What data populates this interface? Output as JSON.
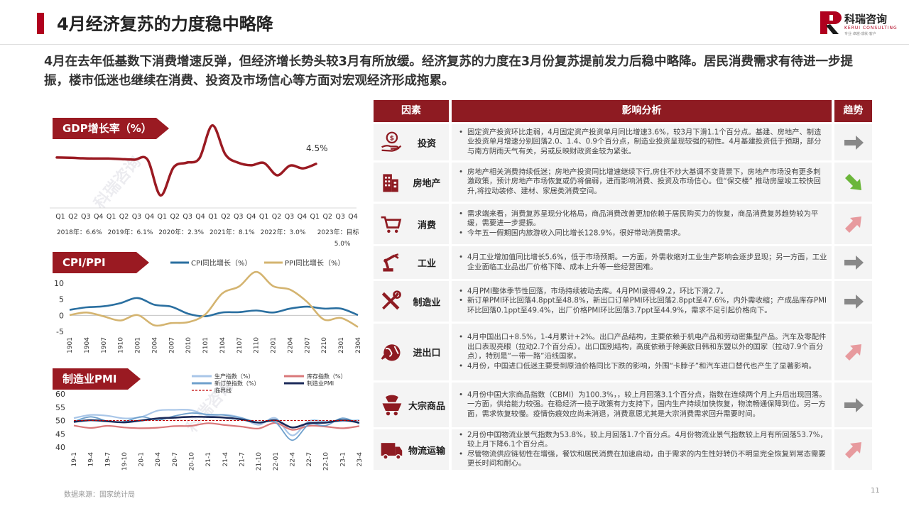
{
  "header": {
    "title": "4月经济复苏的力度稳中略降",
    "logo_cn": "科瑞咨询",
    "logo_en": "KERUI CONSULTING",
    "logo_sub": "专业·卓越·成就·客户"
  },
  "summary": "4月在去年低基数下消费增速反弹，但经济增长势头较3月有所放缓。经济复苏的力度在3月份复苏提前发力后稳中略降。居民消费需求有待进一步提振，楼市低迷也继续在消费、投资及市场信心等方面对宏观经济形成拖累。",
  "watermark": "科瑞咨询",
  "gdp": {
    "tag": "GDP增长率（%）",
    "annotation": "4.5%",
    "quarters": [
      "Q1",
      "Q2",
      "Q3",
      "Q4",
      "Q1",
      "Q2",
      "Q3",
      "Q4",
      "Q1",
      "Q2",
      "Q3",
      "Q4",
      "Q1",
      "Q2",
      "Q3",
      "Q4",
      "Q1",
      "Q2",
      "Q3",
      "Q4",
      "Q1",
      "Q2",
      "Q3",
      "Q4"
    ],
    "year_labels": [
      "2018年：6.6%",
      "2019年：6.1%",
      "2020年：2.3%",
      "2021年：8.1%",
      "2022年：3.0%",
      "2023年：目标5.0%"
    ]
  },
  "cpi": {
    "tag": "CPI/PPI",
    "legend_cpi": "CPI同比增长（%）",
    "legend_ppi": "PPI同比增长（%）",
    "y_ticks": [
      "10",
      "5",
      "0",
      "-5"
    ],
    "x_ticks": [
      "1901",
      "1904",
      "1907",
      "1910",
      "2001",
      "2004",
      "2007",
      "2010",
      "2101",
      "2104",
      "2107",
      "2110",
      "2201",
      "2204",
      "2207",
      "2210",
      "2301",
      "2304"
    ]
  },
  "pmi": {
    "tag": "制造业PMI",
    "legend": [
      "生产指数（%）",
      "库存指数（%）",
      "新订单指数（%）",
      "制造业PMI",
      "临界线"
    ],
    "y_ticks": [
      "60",
      "55",
      "50",
      "45",
      "40"
    ],
    "x_ticks": [
      "19-1",
      "19-4",
      "19-7",
      "19-10",
      "20-1",
      "20-4",
      "20-7",
      "20-10",
      "21-1",
      "21-4",
      "21-7",
      "21-10",
      "22-01",
      "22-4",
      "22-7",
      "22-10",
      "23-1",
      "23-4"
    ]
  },
  "chart_data": [
    {
      "type": "line",
      "title": "GDP增长率（%）",
      "x": [
        "2018Q1",
        "2018Q2",
        "2018Q3",
        "2018Q4",
        "2019Q1",
        "2019Q2",
        "2019Q3",
        "2019Q4",
        "2020Q1",
        "2020Q2",
        "2020Q3",
        "2020Q4",
        "2021Q1",
        "2021Q2",
        "2021Q3",
        "2021Q4",
        "2022Q1",
        "2022Q2",
        "2022Q3",
        "2022Q4",
        "2023Q1"
      ],
      "series": [
        {
          "values": [
            6.8,
            6.7,
            6.5,
            6.4,
            6.4,
            6.2,
            6.0,
            6.0,
            -6.8,
            3.2,
            4.9,
            6.5,
            18.3,
            7.9,
            4.9,
            4.0,
            4.8,
            0.4,
            3.9,
            2.9,
            4.5
          ]
        }
      ],
      "ylim": [
        -8,
        20
      ]
    },
    {
      "type": "line",
      "title": "CPI/PPI",
      "x": [
        "1901",
        "1904",
        "1907",
        "1910",
        "2001",
        "2004",
        "2007",
        "2010",
        "2101",
        "2104",
        "2107",
        "2110",
        "2201",
        "2204",
        "2207",
        "2210",
        "2301",
        "2304"
      ],
      "series": [
        {
          "name": "CPI同比增长（%）",
          "values": [
            1.7,
            2.5,
            2.8,
            3.8,
            5.4,
            3.3,
            2.7,
            0.5,
            -0.3,
            0.9,
            1.0,
            1.5,
            0.9,
            2.1,
            2.7,
            2.1,
            2.1,
            0.1
          ]
        },
        {
          "name": "PPI同比增长（%）",
          "values": [
            0.1,
            0.9,
            -0.3,
            -1.6,
            0.1,
            -3.1,
            -2.4,
            -2.1,
            0.3,
            6.8,
            9.0,
            13.5,
            9.1,
            8.0,
            4.2,
            -1.3,
            -0.8,
            -3.6
          ]
        }
      ],
      "ylim": [
        -5,
        10
      ]
    },
    {
      "type": "line",
      "title": "制造业PMI",
      "x": [
        "19-1",
        "19-4",
        "19-7",
        "19-10",
        "20-1",
        "20-4",
        "20-7",
        "20-10",
        "21-1",
        "21-4",
        "21-7",
        "21-10",
        "22-01",
        "22-4",
        "22-7",
        "22-10",
        "23-1",
        "23-4"
      ],
      "series": [
        {
          "name": "生产指数（%）",
          "values": [
            50.9,
            52.1,
            51.8,
            50.8,
            51.3,
            53.7,
            54.0,
            53.9,
            51.9,
            52.2,
            51.0,
            48.4,
            50.9,
            44.4,
            49.8,
            49.6,
            49.8,
            50.2
          ]
        },
        {
          "name": "库存指数（%）",
          "values": [
            48.1,
            47.2,
            48.0,
            47.4,
            47.1,
            47.3,
            47.9,
            48.0,
            49.0,
            48.3,
            47.7,
            47.0,
            49.1,
            46.5,
            48.0,
            47.7,
            47.1,
            47.9
          ]
        },
        {
          "name": "新订单指数（%）",
          "values": [
            49.6,
            51.4,
            49.8,
            49.6,
            51.4,
            50.2,
            51.7,
            52.8,
            52.3,
            52.0,
            50.9,
            49.3,
            49.3,
            42.6,
            48.5,
            48.1,
            50.9,
            48.8
          ]
        },
        {
          "name": "制造业PMI",
          "values": [
            49.5,
            50.1,
            49.7,
            49.3,
            50.0,
            50.8,
            51.1,
            51.4,
            51.3,
            51.1,
            50.4,
            49.2,
            50.1,
            47.4,
            49.0,
            49.2,
            50.1,
            49.2
          ]
        },
        {
          "name": "临界线",
          "values": [
            50,
            50,
            50,
            50,
            50,
            50,
            50,
            50,
            50,
            50,
            50,
            50,
            50,
            50,
            50,
            50,
            50,
            50
          ]
        }
      ],
      "ylim": [
        40,
        60
      ]
    }
  ],
  "table": {
    "headers": [
      "因素",
      "影响分析",
      "趋势"
    ],
    "rows": [
      {
        "label": "投资",
        "icon": "investment-icon",
        "trend": "flat",
        "points": [
          "固定资产投资环比走弱，4月固定资产投资单月同比增速3.6%，较3月下滑1.1个百分点。基建、房地产、制造业投资单月增速分别回落2.0、1.4、0.9个百分点，制造业投资呈现较强的韧性。4月基建投资低于预期，部分与南方阴雨天气有关，另或反映财政资金较为紧张。"
        ]
      },
      {
        "label": "房地产",
        "icon": "building-icon",
        "trend": "down",
        "points": [
          "房地产相关消费持续低迷；房地产投资同比增速继续下行,房住不炒大基调不变背景下，房地产市场没有更多刺激政策，预计房地产市场恢复或仍将偏弱，进而影响消费、投资及市场信心。但“保交楼” 推动房屋竣工较快回升,将拉动装修、建材、家居类消费空间。"
        ]
      },
      {
        "label": "消费",
        "icon": "shopping-cart-icon",
        "trend": "up",
        "points": [
          "需求端来看，消费复苏呈现分化格局，商品消费改善更加依赖于居民购买力的恢复，商品消费复苏趋势较为平缓，需要进一步提振。",
          "今年五一假期国内旅游收入同比增长128.9%，很好带动消费需求。"
        ]
      },
      {
        "label": "工业",
        "icon": "robot-arm-icon",
        "trend": "flat",
        "points": [
          "4月工业增加值同比增长5.6%，低于市场预期。一方面，外需收缩对工业生产影响会逐步显现；另一方面，工业企业面临工业品出厂价格下降、成本上升等一些经营困难。"
        ]
      },
      {
        "label": "制造业",
        "icon": "tools-icon",
        "trend": "flat",
        "points": [
          "4月PMI整体季节性回落，市场持续被动去库。4月PMI录得49.2，环比下滑2.7。",
          "新订单PMI环比回落4.8ppt至48.8%，新出口订单PMI环比回落2.8ppt至47.6%，内外需收缩；产成品库存PMI环比回落0.1ppt至49.4%，出厂价格PMI环比回落3.7ppt至44.9%，需求不足引起价格向下。"
        ]
      },
      {
        "label": "进出口",
        "icon": "globe-trade-icon",
        "trend": "up",
        "points": [
          "4月中国出口+8.5%，1-4月累计+2%。出口产品结构，主要依赖于机电产品和劳动密集型产品。汽车及零配件出口表现亮眼（拉动2.7个百分点）。出口国别结构，高度依赖于除美欧日韩和东盟以外的国家（拉动7.9个百分点），特别是“一带一路”沿线国家。",
          "4月份，中国进口低迷主要受到原油价格同比下跌的影响，外围“卡脖子”和汽车进口替代也产生了显著影响。"
        ]
      },
      {
        "label": "大宗商品",
        "icon": "mining-cart-icon",
        "trend": "flat",
        "points": [
          "4月份中国大宗商品指数（CBMI）为100.3%，，较上月回落3.1个百分点，指数在连续两个月上升后出现回落。一方面，供给能力较强。在稳经济一揽子政策有力支持下，国内生产持续加快恢复，物流畅通保障到位。另一方面，需求恢复较慢。疫情伤痕效应尚未消退，消费意愿尤其是大宗消费需求回升需要时间。"
        ]
      },
      {
        "label": "物流运输",
        "icon": "truck-icon",
        "trend": "up",
        "points": [
          "2月份中国物流业景气指数为53.8%，较上月回落1.7个百分点。4月份物流业景气指数较上月有所回落53.7%，较上月下降6.1个百分点。",
          "尽管物流供应链韧性在增强，餐饮和居民消费在加速启动，由于需求的内生性好转仍不明显完全恢复到常态需要更长时间和耐心。"
        ]
      }
    ]
  },
  "footer": {
    "source": "数据来源：国家统计局",
    "page": "11"
  },
  "colors": {
    "accent": "#9a1a22",
    "cpi": "#2a6fa0",
    "ppi": "#d4b470",
    "prod": "#a9c6e8",
    "inv": "#d9787a",
    "order": "#6fa0cc",
    "pmi": "#1c2b5a",
    "threshold": "#c00000",
    "trend_up": "#e79a9e",
    "trend_down": "#6bb63a",
    "trend_flat": "#888888"
  }
}
